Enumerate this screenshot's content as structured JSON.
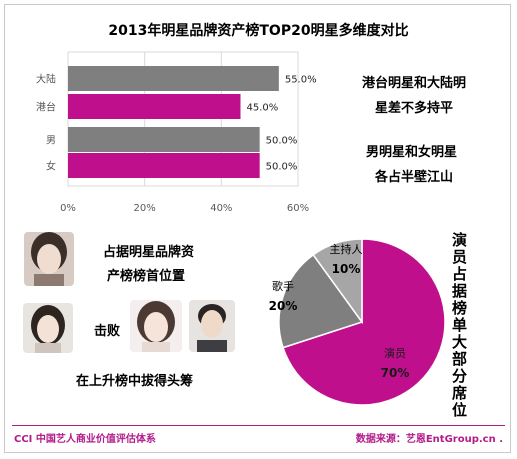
{
  "chart_data": [
    {
      "type": "bar",
      "orientation": "horizontal",
      "title": "2013年明星品牌资产榜TOP20明星多维度对比",
      "categories": [
        "大陆",
        "港台",
        "男",
        "女"
      ],
      "values": [
        55.0,
        45.0,
        50.0,
        50.0
      ],
      "value_labels": [
        "55.0%",
        "45.0%",
        "50.0%",
        "50.0%"
      ],
      "bar_colors": [
        "#7f7f7f",
        "#bf0f8c",
        "#7f7f7f",
        "#bf0f8c"
      ],
      "xlim": [
        0,
        60
      ],
      "xticks": [
        "0%",
        "20%",
        "40%",
        "60%"
      ],
      "grid": true,
      "xlabel": "",
      "ylabel": ""
    },
    {
      "type": "pie",
      "slices": [
        {
          "label": "演员",
          "value": 70,
          "value_label": "70%",
          "color": "#bf0f8c"
        },
        {
          "label": "歌手",
          "value": 20,
          "value_label": "20%",
          "color": "#7f7f7f"
        },
        {
          "label": "主持人",
          "value": 10,
          "value_label": "10%",
          "color": "#a6a6a6"
        }
      ]
    }
  ],
  "notes": {
    "region_line1": "港台明星和大陆明",
    "region_line2": "星差不多持平",
    "gender_line1": "男明星和女明星",
    "gender_line2": "各占半壁江山",
    "top_line1": "占据明星品牌资",
    "top_line2": "产榜榜首位置",
    "defeat": "击败",
    "rise": "在上升榜中拔得头筹",
    "pie_side": [
      "演",
      "员",
      "占",
      "据",
      "榜",
      "单",
      "大",
      "部",
      "分",
      "席",
      "位"
    ]
  },
  "footer": {
    "left": "CCI 中国艺人商业价值评估体系",
    "right": "数据来源：艺恩EntGroup.cn ."
  }
}
